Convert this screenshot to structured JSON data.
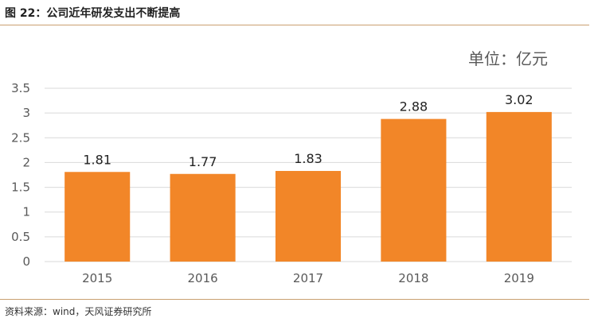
{
  "header": {
    "title": "图 22：公司近年研发支出不断提高"
  },
  "footer": {
    "source": "资料来源：wind，天风证券研究所"
  },
  "colors": {
    "bar": "#F28628",
    "grid": "#d9d9d9",
    "rule": "#c9a070"
  },
  "chart_data": {
    "type": "bar",
    "title": "",
    "unit_label": "单位：亿元",
    "categories": [
      "2015",
      "2016",
      "2017",
      "2018",
      "2019"
    ],
    "values": [
      1.81,
      1.77,
      1.83,
      2.88,
      3.02
    ],
    "data_labels": [
      "1.81",
      "1.77",
      "1.83",
      "2.88",
      "3.02"
    ],
    "y_ticks": [
      "0",
      "0.5",
      "1",
      "1.5",
      "2",
      "2.5",
      "3",
      "3.5"
    ],
    "ylim": [
      0,
      3.5
    ],
    "grid": true,
    "legend": "none"
  }
}
